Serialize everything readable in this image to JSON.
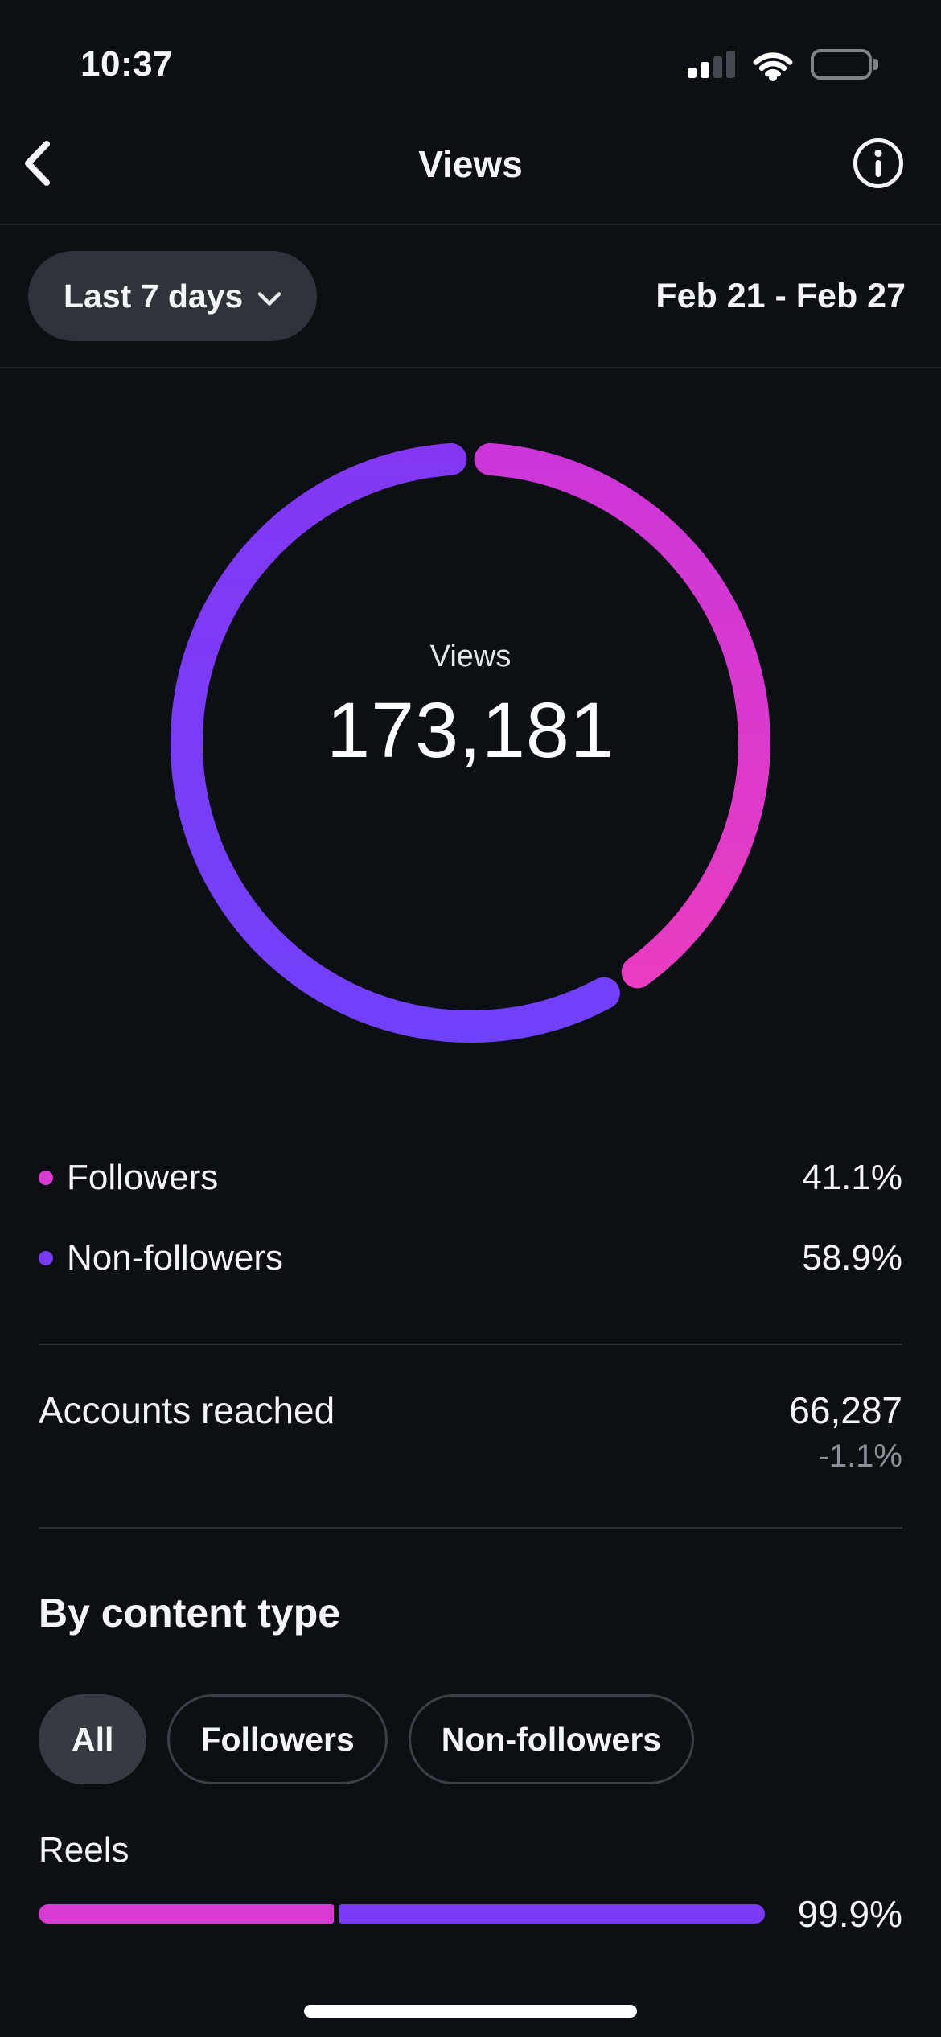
{
  "status_bar": {
    "time": "10:37"
  },
  "header": {
    "title": "Views"
  },
  "filter": {
    "period_label": "Last 7 days",
    "date_range": "Feb 21 - Feb 27"
  },
  "chart_data": {
    "type": "donut",
    "title": "Views",
    "center_label": "Views",
    "center_value": "173,181",
    "start_angle": "top",
    "direction": "clockwise",
    "series": [
      {
        "name": "Followers",
        "value_pct": 41.1,
        "label": "41.1%",
        "color": "#D73BD1",
        "gradient": [
          "#CB36D9",
          "#EC3DBE"
        ]
      },
      {
        "name": "Non-followers",
        "value_pct": 58.9,
        "label": "58.9%",
        "color": "#7A3AF8",
        "gradient": [
          "#8437F2",
          "#7041FB"
        ]
      }
    ]
  },
  "accounts_reached": {
    "label": "Accounts reached",
    "value": "66,287",
    "change": "-1.1%"
  },
  "by_content_type": {
    "title": "By content type",
    "chips": [
      {
        "label": "All",
        "selected": true
      },
      {
        "label": "Followers",
        "selected": false
      },
      {
        "label": "Non-followers",
        "selected": false
      }
    ],
    "rows": [
      {
        "label": "Reels",
        "value_label": "99.9%",
        "value_pct": 99.9,
        "split_pct": [
          41.1,
          58.9
        ]
      }
    ]
  },
  "colors": {
    "background": "#0C0F13",
    "surface_pill": "#2F343A",
    "chip_selected": "#363B41",
    "chip_border": "#3A4046",
    "divider": "#2C3137",
    "text_primary": "#F3F5F7",
    "text_secondary": "#8E9298"
  }
}
